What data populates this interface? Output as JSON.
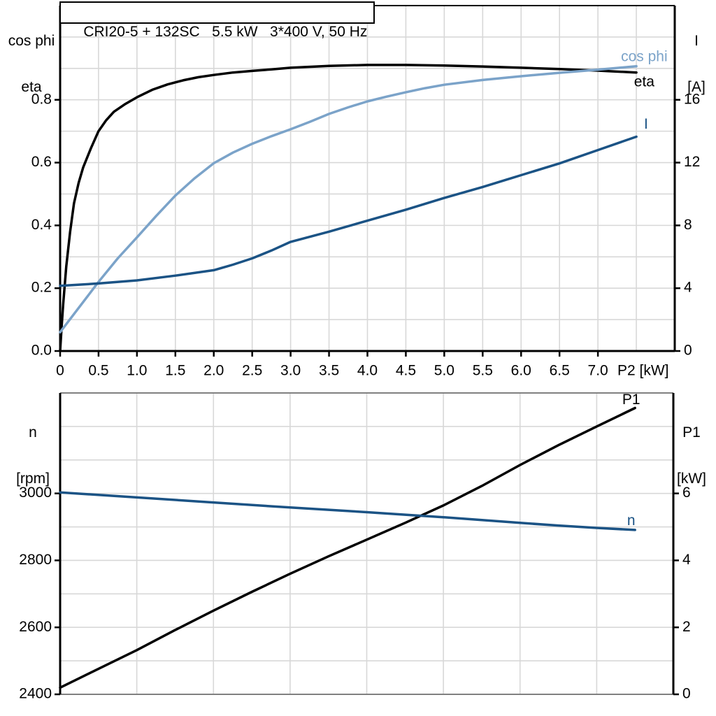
{
  "colors": {
    "black": "#000000",
    "dark_blue": "#1b5385",
    "light_blue": "#7ba3c9",
    "grid": "#d8d8d8",
    "gray_border": "#808080",
    "background": "#ffffff"
  },
  "chart_data": [
    {
      "type": "line",
      "title": "CRI20-5 + 132SC   5.5 kW   3*400 V, 50 Hz",
      "xlabel": "P2 [kW]",
      "x_axis": {
        "range": [
          0,
          8
        ],
        "grid_from": 0.5,
        "grid_to": 7.5,
        "grid_step": 0.5,
        "ticks": [
          [
            0,
            "0"
          ],
          [
            0.5,
            "0.5"
          ],
          [
            1,
            "1.0"
          ],
          [
            1.5,
            "1.5"
          ],
          [
            2,
            "2.0"
          ],
          [
            2.5,
            "2.5"
          ],
          [
            3,
            "3.0"
          ],
          [
            3.5,
            "3.5"
          ],
          [
            4,
            "4.0"
          ],
          [
            4.5,
            "4.5"
          ],
          [
            5,
            "5.0"
          ],
          [
            5.5,
            "5.5"
          ],
          [
            6,
            "6.0"
          ],
          [
            6.5,
            "6.5"
          ],
          [
            7,
            "7.0"
          ]
        ]
      },
      "left_axis": {
        "label_lines": [
          "cos phi",
          "eta"
        ],
        "range": [
          0,
          1.1
        ],
        "grid_from": 0.1,
        "grid_to": 1.0,
        "grid_step": 0.1,
        "ticks": [
          [
            0,
            "0.0"
          ],
          [
            0.2,
            "0.2"
          ],
          [
            0.4,
            "0.4"
          ],
          [
            0.6,
            "0.6"
          ],
          [
            0.8,
            "0.8"
          ]
        ]
      },
      "right_axis": {
        "label_lines": [
          "I",
          "[A]"
        ],
        "range": [
          0,
          22
        ],
        "ticks": [
          [
            0,
            "0"
          ],
          [
            4,
            "4"
          ],
          [
            8,
            "8"
          ],
          [
            12,
            "12"
          ],
          [
            16,
            "16"
          ]
        ]
      },
      "series": [
        {
          "name": "eta",
          "axis": "left",
          "color": "black",
          "label": {
            "text": "eta",
            "x": 7.47,
            "y": 0.855,
            "anchor": "start",
            "color": "black"
          },
          "points": [
            [
              0,
              0
            ],
            [
              0.02,
              0.08
            ],
            [
              0.04,
              0.15
            ],
            [
              0.08,
              0.27
            ],
            [
              0.13,
              0.38
            ],
            [
              0.18,
              0.47
            ],
            [
              0.24,
              0.535
            ],
            [
              0.3,
              0.585
            ],
            [
              0.4,
              0.645
            ],
            [
              0.5,
              0.7
            ],
            [
              0.6,
              0.735
            ],
            [
              0.7,
              0.762
            ],
            [
              0.85,
              0.787
            ],
            [
              1.0,
              0.808
            ],
            [
              1.2,
              0.832
            ],
            [
              1.4,
              0.849
            ],
            [
              1.6,
              0.862
            ],
            [
              1.8,
              0.872
            ],
            [
              2.0,
              0.879
            ],
            [
              2.25,
              0.887
            ],
            [
              2.5,
              0.892
            ],
            [
              2.75,
              0.897
            ],
            [
              3.0,
              0.902
            ],
            [
              3.5,
              0.908
            ],
            [
              4.0,
              0.911
            ],
            [
              4.5,
              0.911
            ],
            [
              5.0,
              0.909
            ],
            [
              5.5,
              0.906
            ],
            [
              6.0,
              0.902
            ],
            [
              6.5,
              0.898
            ],
            [
              7.0,
              0.893
            ],
            [
              7.5,
              0.887
            ]
          ]
        },
        {
          "name": "cos phi",
          "axis": "left",
          "color": "light_blue",
          "label": {
            "text": "cos phi",
            "x": 7.3,
            "y": 0.935,
            "anchor": "start",
            "color": "light_blue"
          },
          "points": [
            [
              0,
              0.06
            ],
            [
              0.25,
              0.14
            ],
            [
              0.5,
              0.22
            ],
            [
              0.75,
              0.295
            ],
            [
              1.0,
              0.362
            ],
            [
              1.25,
              0.43
            ],
            [
              1.5,
              0.495
            ],
            [
              1.75,
              0.55
            ],
            [
              2.0,
              0.598
            ],
            [
              2.25,
              0.632
            ],
            [
              2.5,
              0.66
            ],
            [
              2.75,
              0.684
            ],
            [
              3.0,
              0.706
            ],
            [
              3.25,
              0.73
            ],
            [
              3.5,
              0.755
            ],
            [
              3.75,
              0.776
            ],
            [
              4.0,
              0.795
            ],
            [
              4.25,
              0.81
            ],
            [
              4.5,
              0.824
            ],
            [
              4.75,
              0.837
            ],
            [
              5.0,
              0.848
            ],
            [
              5.5,
              0.863
            ],
            [
              6.0,
              0.875
            ],
            [
              6.5,
              0.886
            ],
            [
              7.0,
              0.896
            ],
            [
              7.5,
              0.907
            ]
          ]
        },
        {
          "name": "I",
          "axis": "right",
          "color": "dark_blue",
          "label": {
            "text": "I",
            "x": 7.6,
            "y": 14.4,
            "anchor": "start",
            "color": "dark_blue"
          },
          "points": [
            [
              0,
              4.15
            ],
            [
              0.5,
              4.3
            ],
            [
              1.0,
              4.5
            ],
            [
              1.5,
              4.8
            ],
            [
              2.0,
              5.15
            ],
            [
              2.25,
              5.5
            ],
            [
              2.5,
              5.9
            ],
            [
              2.75,
              6.4
            ],
            [
              3.0,
              6.95
            ],
            [
              3.5,
              7.6
            ],
            [
              4.0,
              8.3
            ],
            [
              4.5,
              9.0
            ],
            [
              5.0,
              9.75
            ],
            [
              5.5,
              10.45
            ],
            [
              6.0,
              11.2
            ],
            [
              6.5,
              11.95
            ],
            [
              7.0,
              12.8
            ],
            [
              7.5,
              13.65
            ]
          ]
        }
      ]
    },
    {
      "type": "line",
      "title": "",
      "xlabel": "",
      "x_axis": {
        "range": [
          0,
          8
        ],
        "grid_from": 1,
        "grid_to": 7,
        "grid_step": 1,
        "ticks": []
      },
      "left_axis": {
        "label_lines": [
          "n",
          "[rpm]"
        ],
        "range": [
          2400,
          3300
        ],
        "grid_from": 2500,
        "grid_to": 3200,
        "grid_step": 100,
        "ticks": [
          [
            2400,
            "2400"
          ],
          [
            2600,
            "2600"
          ],
          [
            2800,
            "2800"
          ],
          [
            3000,
            "3000"
          ]
        ]
      },
      "right_axis": {
        "label_lines": [
          "P1",
          "[kW]"
        ],
        "range": [
          0,
          9
        ],
        "ticks": [
          [
            0,
            "0"
          ],
          [
            2,
            "2"
          ],
          [
            4,
            "4"
          ],
          [
            6,
            "6"
          ]
        ]
      },
      "series": [
        {
          "name": "P1",
          "axis": "right",
          "color": "black",
          "label": {
            "text": "P1",
            "x": 7.45,
            "y": 8.78,
            "anchor": "middle",
            "color": "black"
          },
          "points": [
            [
              0,
              0.2
            ],
            [
              0.5,
              0.76
            ],
            [
              1,
              1.32
            ],
            [
              1.5,
              1.92
            ],
            [
              2,
              2.5
            ],
            [
              2.5,
              3.06
            ],
            [
              3,
              3.6
            ],
            [
              3.5,
              4.12
            ],
            [
              4,
              4.62
            ],
            [
              4.5,
              5.12
            ],
            [
              5,
              5.64
            ],
            [
              5.5,
              6.22
            ],
            [
              6,
              6.85
            ],
            [
              6.5,
              7.44
            ],
            [
              7,
              8.0
            ],
            [
              7.5,
              8.55
            ]
          ]
        },
        {
          "name": "n",
          "axis": "left",
          "color": "dark_blue",
          "label": {
            "text": "n",
            "x": 7.45,
            "y": 2917,
            "anchor": "middle",
            "color": "dark_blue"
          },
          "points": [
            [
              0,
              3003
            ],
            [
              1,
              2988
            ],
            [
              2,
              2973
            ],
            [
              3,
              2958
            ],
            [
              4,
              2944
            ],
            [
              5,
              2929
            ],
            [
              6,
              2912
            ],
            [
              6.5,
              2904
            ],
            [
              7,
              2897
            ],
            [
              7.5,
              2891
            ]
          ]
        }
      ]
    }
  ]
}
